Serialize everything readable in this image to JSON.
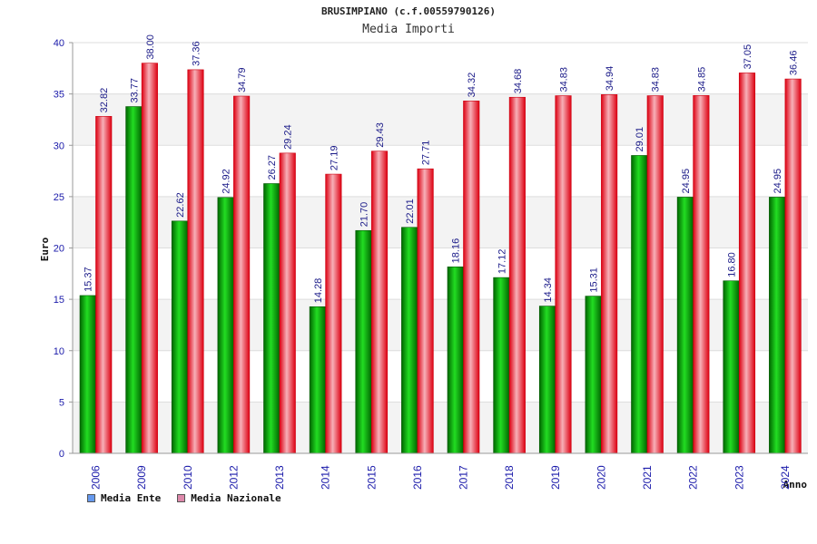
{
  "chart_data": {
    "type": "bar",
    "title": "BRUSIMPIANO (c.f.00559790126)",
    "subtitle": "Media Importi",
    "ylabel": "Euro",
    "xlabel": "Anno",
    "ylim": [
      0,
      40
    ],
    "yticks": [
      0,
      5,
      10,
      15,
      20,
      25,
      30,
      35,
      40
    ],
    "grid": true,
    "legend_position": "bottom-left",
    "categories": [
      "2006",
      "2009",
      "2010",
      "2012",
      "2013",
      "2014",
      "2015",
      "2016",
      "2017",
      "2018",
      "2019",
      "2020",
      "2021",
      "2022",
      "2023",
      "2024"
    ],
    "series": [
      {
        "name": "Media Ente",
        "color": "#00aa00",
        "legend_color": "#6699ee",
        "values": [
          15.37,
          33.77,
          22.62,
          24.92,
          26.27,
          14.28,
          21.7,
          22.01,
          18.16,
          17.12,
          14.34,
          15.31,
          29.01,
          24.95,
          16.8,
          24.95
        ],
        "labels": [
          "15.37",
          "33.77",
          "22.62",
          "24.92",
          "26.27",
          "14.28",
          "21.70",
          "22.01",
          "18.16",
          "17.12",
          "14.34",
          "15.31",
          "29.01",
          "24.95",
          "16.80",
          "24.95"
        ]
      },
      {
        "name": "Media Nazionale",
        "color": "#ee1122",
        "legend_color": "#dd88aa",
        "values": [
          32.82,
          38.0,
          37.36,
          34.79,
          29.24,
          27.19,
          29.43,
          27.71,
          34.32,
          34.68,
          34.83,
          34.94,
          34.83,
          34.85,
          37.05,
          36.46
        ],
        "labels": [
          "32.82",
          "38.00",
          "37.36",
          "34.79",
          "29.24",
          "27.19",
          "29.43",
          "27.71",
          "34.32",
          "34.68",
          "34.83",
          "34.94",
          "34.83",
          "34.85",
          "37.05",
          "36.46"
        ]
      }
    ]
  }
}
